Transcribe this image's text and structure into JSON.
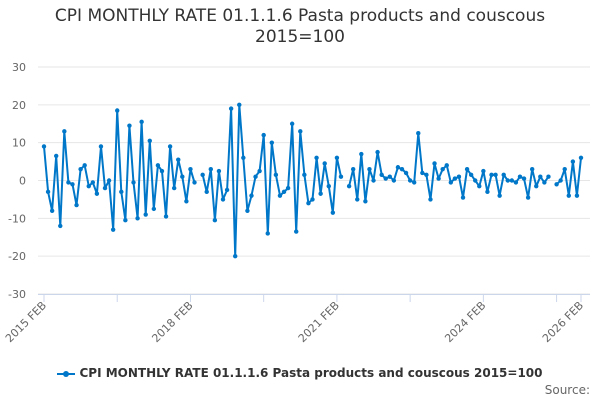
{
  "chart_data": {
    "type": "line",
    "title": "CPI MONTHLY RATE 01.1.1.6 Pasta products and couscous 2015=100",
    "title_lines": [
      "CPI MONTHLY RATE 01.1.1.6 Pasta products and couscous",
      "2015=100"
    ],
    "x_start": "2015 FEB",
    "x_end": "2026 FEB",
    "x_tick_labels": [
      "2015 FEB",
      "2018 FEB",
      "2021 FEB",
      "2024 FEB",
      "2026 FEB"
    ],
    "ylim": [
      -30,
      30
    ],
    "y_ticks": [
      30,
      20,
      10,
      0,
      -10,
      -20,
      -30
    ],
    "grid": true,
    "legend_position": "bottom",
    "color": "#0077c8",
    "series": [
      {
        "name": "CPI MONTHLY RATE 01.1.1.6 Pasta products and couscous 2015=100",
        "values": [
          9,
          -3,
          -8,
          6.5,
          -12,
          13,
          -0.5,
          -1,
          -6.5,
          3,
          4,
          -1.5,
          -0.5,
          -3.5,
          9,
          -2,
          0,
          -13,
          18.5,
          -3,
          -10.5,
          14.5,
          -0.5,
          -10,
          15.5,
          -9,
          10.5,
          -7.5,
          4,
          2.5,
          -9.5,
          9,
          -2,
          5.5,
          1,
          -5.5,
          3,
          -0.5,
          null,
          1.5,
          -3,
          3,
          -10.5,
          2.5,
          -5,
          -2.5,
          19,
          -20,
          20,
          6,
          -8,
          -4,
          1,
          2.5,
          12,
          -14,
          10,
          1.5,
          -4,
          -3,
          -2,
          15,
          -13.5,
          13,
          1.5,
          -6,
          -5,
          6,
          -3.5,
          4.5,
          -1.5,
          -8.5,
          6,
          1,
          null,
          -1.5,
          3,
          -5,
          7,
          -5.5,
          3,
          0,
          7.5,
          1.5,
          0.5,
          1,
          0,
          3.5,
          3,
          2,
          0,
          -0.5,
          12.5,
          2,
          1.5,
          -5,
          4.5,
          0.5,
          3,
          4,
          -0.5,
          0.5,
          1,
          -4.5,
          3,
          1.5,
          0,
          -1.5,
          2.5,
          -3,
          1.5,
          1.5,
          -4,
          1.5,
          0,
          0,
          -0.5,
          1,
          0.5,
          -4.5,
          3,
          -1.5,
          1,
          -0.5,
          1,
          null,
          -1,
          0,
          3,
          -4,
          5,
          -4,
          6
        ]
      }
    ]
  },
  "source_label": "Source:"
}
